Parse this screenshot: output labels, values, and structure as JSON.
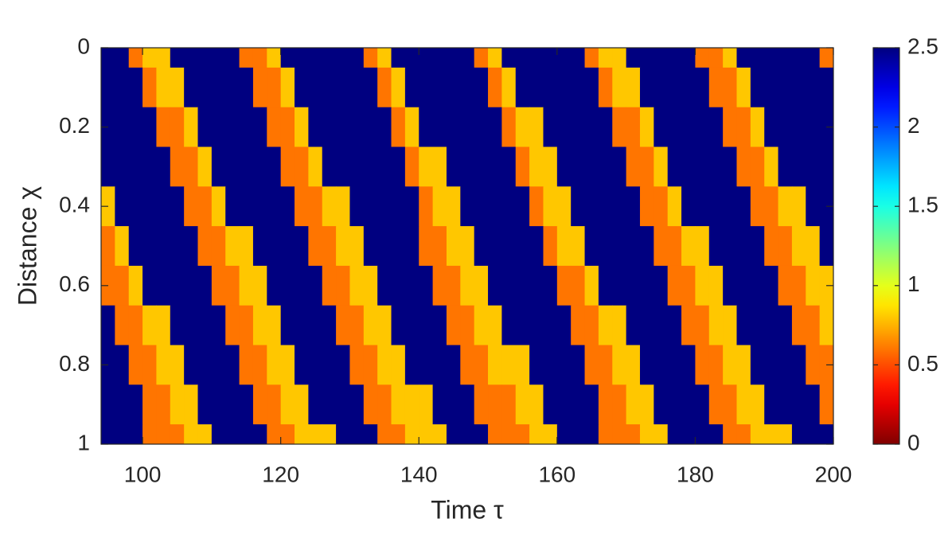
{
  "chart_data": {
    "type": "heatmap",
    "xlabel": "Time τ",
    "ylabel": "Distance χ",
    "x": [
      95,
      97,
      99,
      101,
      103,
      105,
      107,
      109,
      111,
      113,
      115,
      117,
      119,
      121,
      123,
      125,
      127,
      129,
      131,
      133,
      135,
      137,
      139,
      141,
      143,
      145,
      147,
      149,
      151,
      153,
      155,
      157,
      159,
      161,
      163,
      165,
      167,
      169,
      171,
      173,
      175,
      177,
      179,
      181,
      183,
      185,
      187,
      189,
      191,
      193,
      195,
      197,
      199
    ],
    "y": [
      0,
      0.1,
      0.2,
      0.3,
      0.4,
      0.5,
      0.6,
      0.7,
      0.8,
      0.9,
      1
    ],
    "z": [
      [
        2.5,
        2.5,
        0.6,
        0.8,
        0.8,
        2.5,
        2.5,
        2.5,
        2.5,
        2.5,
        0.6,
        0.6,
        0.8,
        2.5,
        2.5,
        2.5,
        2.5,
        2.5,
        2.5,
        0.6,
        0.8,
        2.5,
        2.5,
        2.5,
        2.5,
        2.5,
        2.5,
        0.6,
        0.8,
        2.5,
        2.5,
        2.5,
        2.5,
        2.5,
        2.5,
        0.6,
        0.8,
        0.8,
        2.5,
        2.5,
        2.5,
        2.5,
        2.5,
        0.6,
        0.6,
        0.8,
        2.5,
        2.5,
        2.5,
        2.5,
        2.5,
        2.5,
        0.6
      ],
      [
        2.5,
        2.5,
        2.5,
        0.6,
        0.8,
        0.8,
        2.5,
        2.5,
        2.5,
        2.5,
        2.5,
        0.6,
        0.6,
        0.8,
        2.5,
        2.5,
        2.5,
        2.5,
        2.5,
        2.5,
        0.6,
        0.8,
        2.5,
        2.5,
        2.5,
        2.5,
        2.5,
        2.5,
        0.6,
        0.8,
        2.5,
        2.5,
        2.5,
        2.5,
        2.5,
        2.5,
        0.6,
        0.8,
        0.8,
        2.5,
        2.5,
        2.5,
        2.5,
        2.5,
        0.6,
        0.6,
        0.8,
        2.5,
        2.5,
        2.5,
        2.5,
        2.5,
        2.5
      ],
      [
        2.5,
        2.5,
        2.5,
        2.5,
        0.6,
        0.6,
        0.8,
        2.5,
        2.5,
        2.5,
        2.5,
        2.5,
        0.6,
        0.6,
        0.8,
        2.5,
        2.5,
        2.5,
        2.5,
        2.5,
        2.5,
        0.6,
        0.8,
        2.5,
        2.5,
        2.5,
        2.5,
        2.5,
        2.5,
        0.6,
        0.8,
        0.8,
        2.5,
        2.5,
        2.5,
        2.5,
        2.5,
        0.6,
        0.6,
        0.8,
        2.5,
        2.5,
        2.5,
        2.5,
        2.5,
        0.6,
        0.6,
        0.8,
        2.5,
        2.5,
        2.5,
        2.5,
        2.5
      ],
      [
        2.5,
        2.5,
        2.5,
        2.5,
        2.5,
        0.6,
        0.6,
        0.8,
        2.5,
        2.5,
        2.5,
        2.5,
        2.5,
        0.6,
        0.6,
        0.8,
        2.5,
        2.5,
        2.5,
        2.5,
        2.5,
        2.5,
        0.6,
        0.8,
        0.8,
        2.5,
        2.5,
        2.5,
        2.5,
        2.5,
        0.6,
        0.8,
        0.8,
        2.5,
        2.5,
        2.5,
        2.5,
        2.5,
        0.6,
        0.6,
        0.8,
        2.5,
        2.5,
        2.5,
        2.5,
        2.5,
        0.6,
        0.6,
        0.8,
        2.5,
        2.5,
        2.5,
        2.5
      ],
      [
        0.8,
        2.5,
        2.5,
        2.5,
        2.5,
        2.5,
        0.6,
        0.6,
        0.8,
        2.5,
        2.5,
        2.5,
        2.5,
        2.5,
        0.6,
        0.6,
        0.8,
        0.8,
        2.5,
        2.5,
        2.5,
        2.5,
        2.5,
        0.6,
        0.8,
        0.8,
        2.5,
        2.5,
        2.5,
        2.5,
        2.5,
        0.6,
        0.8,
        0.8,
        2.5,
        2.5,
        2.5,
        2.5,
        2.5,
        0.6,
        0.6,
        0.8,
        2.5,
        2.5,
        2.5,
        2.5,
        2.5,
        0.6,
        0.6,
        0.8,
        0.8,
        2.5,
        2.5
      ],
      [
        0.6,
        0.8,
        2.5,
        2.5,
        2.5,
        2.5,
        2.5,
        0.6,
        0.6,
        0.8,
        0.8,
        2.5,
        2.5,
        2.5,
        2.5,
        0.6,
        0.6,
        0.8,
        0.8,
        2.5,
        2.5,
        2.5,
        2.5,
        0.6,
        0.6,
        0.8,
        0.8,
        2.5,
        2.5,
        2.5,
        2.5,
        2.5,
        0.6,
        0.8,
        0.8,
        2.5,
        2.5,
        2.5,
        2.5,
        2.5,
        0.6,
        0.6,
        0.8,
        0.8,
        2.5,
        2.5,
        2.5,
        2.5,
        0.6,
        0.6,
        0.8,
        0.8,
        2.5
      ],
      [
        0.6,
        0.6,
        0.8,
        2.5,
        2.5,
        2.5,
        2.5,
        2.5,
        0.6,
        0.6,
        0.8,
        0.8,
        2.5,
        2.5,
        2.5,
        2.5,
        0.6,
        0.6,
        0.8,
        0.8,
        2.5,
        2.5,
        2.5,
        2.5,
        0.6,
        0.6,
        0.8,
        0.8,
        2.5,
        2.5,
        2.5,
        2.5,
        2.5,
        0.6,
        0.6,
        0.8,
        2.5,
        2.5,
        2.5,
        2.5,
        2.5,
        0.6,
        0.6,
        0.8,
        0.8,
        2.5,
        2.5,
        2.5,
        2.5,
        0.6,
        0.6,
        0.8,
        0.8
      ],
      [
        2.5,
        0.6,
        0.6,
        0.8,
        0.8,
        2.5,
        2.5,
        2.5,
        2.5,
        0.6,
        0.6,
        0.8,
        0.8,
        2.5,
        2.5,
        2.5,
        2.5,
        0.6,
        0.6,
        0.8,
        0.8,
        2.5,
        2.5,
        2.5,
        2.5,
        0.6,
        0.6,
        0.8,
        0.8,
        2.5,
        2.5,
        2.5,
        2.5,
        2.5,
        0.6,
        0.6,
        0.8,
        0.8,
        2.5,
        2.5,
        2.5,
        2.5,
        0.6,
        0.6,
        0.8,
        0.8,
        2.5,
        2.5,
        2.5,
        2.5,
        0.6,
        0.6,
        0.8
      ],
      [
        2.5,
        2.5,
        0.6,
        0.6,
        0.8,
        0.8,
        2.5,
        2.5,
        2.5,
        2.5,
        0.6,
        0.6,
        0.8,
        0.8,
        2.5,
        2.5,
        2.5,
        2.5,
        0.6,
        0.6,
        0.8,
        0.8,
        2.5,
        2.5,
        2.5,
        2.5,
        0.6,
        0.6,
        0.8,
        0.8,
        0.8,
        2.5,
        2.5,
        2.5,
        2.5,
        0.6,
        0.6,
        0.8,
        0.8,
        2.5,
        2.5,
        2.5,
        2.5,
        0.6,
        0.6,
        0.8,
        0.8,
        2.5,
        2.5,
        2.5,
        2.5,
        0.6,
        0.6
      ],
      [
        2.5,
        2.5,
        2.5,
        0.6,
        0.6,
        0.8,
        0.8,
        2.5,
        2.5,
        2.5,
        2.5,
        0.6,
        0.6,
        0.8,
        0.8,
        2.5,
        2.5,
        2.5,
        2.5,
        0.6,
        0.6,
        0.8,
        0.8,
        0.8,
        2.5,
        2.5,
        2.5,
        0.6,
        0.6,
        0.6,
        0.8,
        0.8,
        2.5,
        2.5,
        2.5,
        2.5,
        0.6,
        0.6,
        0.8,
        0.8,
        2.5,
        2.5,
        2.5,
        2.5,
        0.6,
        0.6,
        0.8,
        0.8,
        2.5,
        2.5,
        2.5,
        2.5,
        0.6
      ],
      [
        2.5,
        2.5,
        2.5,
        0.6,
        0.6,
        0.6,
        0.8,
        0.8,
        2.5,
        2.5,
        2.5,
        2.5,
        0.6,
        0.6,
        0.8,
        0.8,
        0.8,
        2.5,
        2.5,
        2.5,
        0.6,
        0.6,
        0.8,
        0.8,
        0.8,
        2.5,
        2.5,
        2.5,
        0.6,
        0.6,
        0.6,
        0.8,
        0.8,
        2.5,
        2.5,
        2.5,
        0.6,
        0.6,
        0.6,
        0.8,
        0.8,
        2.5,
        2.5,
        2.5,
        2.5,
        0.6,
        0.6,
        0.8,
        0.8,
        0.8,
        2.5,
        2.5,
        2.5
      ]
    ],
    "xlim": [
      94,
      200
    ],
    "xticks": [
      100,
      120,
      140,
      160,
      180,
      200
    ],
    "ylim": [
      0,
      1
    ],
    "yticks": [
      0,
      0.2,
      0.4,
      0.6,
      0.8,
      1
    ],
    "y_reversed": true,
    "colormap": "jet",
    "colormap_reversed": true,
    "colorbar": {
      "lim": [
        0,
        2.5
      ],
      "ticks": [
        0,
        0.5,
        1,
        1.5,
        2,
        2.5
      ]
    }
  }
}
